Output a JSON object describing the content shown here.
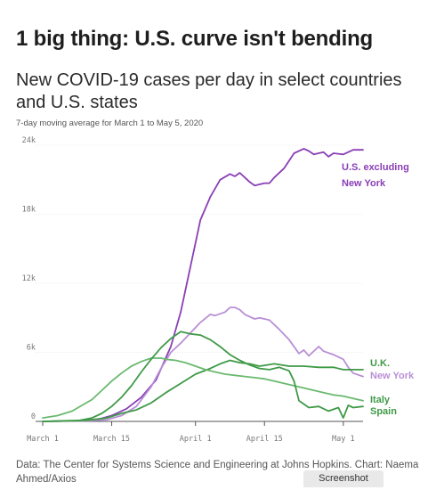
{
  "headline": "1 big thing: U.S. curve isn't bending",
  "source": "Data: The Center for Systems Science and Engineering at Johns Hopkins. Chart: Naema Ahmed/Axios",
  "badge": "Screenshot",
  "colors": {
    "purple_dark": "#8a3fb5",
    "purple_light": "#b98fd6",
    "green_dark": "#3f9a47",
    "green_light": "#6bb96f",
    "grid": "#e7e7e7",
    "axis": "#555555"
  },
  "chart_data": {
    "type": "line",
    "title": "New COVID-19 cases per day in select countries and U.S. states",
    "subtitle": "7-day moving average for March 1 to May 5, 2020",
    "xlabel": "",
    "ylabel": "",
    "xlim": [
      1,
      66
    ],
    "ylim": [
      0,
      24000
    ],
    "y_ticks": [
      0,
      6000,
      12000,
      18000,
      24000
    ],
    "y_tick_labels": [
      "0",
      "6k",
      "12k",
      "18k",
      "24k"
    ],
    "x_ticks": [
      1,
      15,
      32,
      46,
      62
    ],
    "x_tick_labels": [
      "March 1",
      "March 15",
      "April 1",
      "April 15",
      "May 1"
    ],
    "grid": true,
    "series": [
      {
        "name": "U.S. excluding New York",
        "color": "#8a3fb5",
        "x": [
          1,
          8,
          12,
          15,
          18,
          21,
          24,
          27,
          29,
          31,
          33,
          35,
          37,
          39,
          40,
          41,
          42,
          43,
          44,
          46,
          47,
          48,
          50,
          52,
          54,
          55,
          56,
          58,
          59,
          60,
          62,
          64,
          66
        ],
        "y": [
          0,
          50,
          150,
          500,
          1100,
          2100,
          3600,
          6500,
          9500,
          13500,
          17500,
          19500,
          21000,
          21500,
          21300,
          21600,
          21200,
          20800,
          20500,
          20700,
          20700,
          21200,
          22000,
          23300,
          23700,
          23500,
          23200,
          23400,
          23000,
          23300,
          23200,
          23600,
          23600
        ]
      },
      {
        "name": "New York",
        "color": "#b98fd6",
        "x": [
          1,
          10,
          14,
          17,
          20,
          23,
          25,
          27,
          29,
          31,
          33,
          35,
          36,
          38,
          39,
          40,
          41,
          42,
          44,
          45,
          47,
          48,
          49,
          51,
          53,
          54,
          55,
          57,
          58,
          60,
          62,
          63,
          64,
          66
        ],
        "y": [
          0,
          50,
          150,
          500,
          1300,
          3000,
          4600,
          6000,
          6800,
          7700,
          8600,
          9300,
          9200,
          9500,
          9900,
          9900,
          9700,
          9300,
          8900,
          9000,
          8800,
          8400,
          8000,
          7100,
          5900,
          6200,
          5700,
          6500,
          6100,
          5800,
          5400,
          4700,
          4200,
          3900
        ]
      },
      {
        "name": "U.K.",
        "color": "#3f9a47",
        "x": [
          1,
          10,
          14,
          17,
          20,
          23,
          26,
          29,
          32,
          35,
          37,
          39,
          41,
          43,
          45,
          48,
          51,
          54,
          57,
          60,
          62,
          64,
          66
        ],
        "y": [
          0,
          100,
          300,
          700,
          1000,
          1600,
          2500,
          3300,
          4100,
          4600,
          5000,
          5300,
          5100,
          5000,
          4800,
          5000,
          4800,
          4800,
          4700,
          4700,
          4500,
          4500,
          4500
        ]
      },
      {
        "name": "Italy",
        "color": "#6bb96f",
        "x": [
          1,
          4,
          7,
          9,
          11,
          13,
          15,
          17,
          19,
          21,
          23,
          25,
          26,
          28,
          30,
          32,
          34,
          36,
          38,
          40,
          42,
          44,
          46,
          48,
          50,
          52,
          54,
          56,
          58,
          60,
          62,
          64,
          66
        ],
        "y": [
          300,
          500,
          900,
          1400,
          1900,
          2700,
          3500,
          4200,
          4800,
          5200,
          5500,
          5500,
          5400,
          5300,
          5100,
          4800,
          4500,
          4300,
          4100,
          4000,
          3900,
          3800,
          3700,
          3500,
          3300,
          3100,
          2900,
          2700,
          2500,
          2300,
          2200,
          2000,
          1800
        ]
      },
      {
        "name": "Spain",
        "color": "#3f9a47",
        "x": [
          1,
          8,
          11,
          13,
          15,
          17,
          19,
          21,
          23,
          25,
          27,
          29,
          31,
          33,
          35,
          37,
          39,
          41,
          43,
          45,
          47,
          49,
          51,
          52,
          53,
          55,
          57,
          59,
          61,
          62,
          63,
          64,
          66
        ],
        "y": [
          0,
          50,
          300,
          700,
          1300,
          2100,
          3100,
          4300,
          5400,
          6400,
          7200,
          7800,
          7600,
          7500,
          7100,
          6500,
          5800,
          5300,
          4900,
          4600,
          4500,
          4700,
          4400,
          3500,
          1800,
          1200,
          1300,
          900,
          1200,
          300,
          1400,
          1200,
          1300
        ]
      }
    ],
    "labels": [
      {
        "text": "U.S. excluding",
        "series": 0,
        "color": "#8a3fb5"
      },
      {
        "text": "New York",
        "series": 0,
        "color": "#8a3fb5"
      },
      {
        "text": "U.K.",
        "series": 2,
        "color": "#3f9a47"
      },
      {
        "text": "New York",
        "series": 1,
        "color": "#b98fd6"
      },
      {
        "text": "Italy",
        "series": 3,
        "color": "#3f9a47"
      },
      {
        "text": "Spain",
        "series": 4,
        "color": "#3f9a47"
      }
    ]
  }
}
